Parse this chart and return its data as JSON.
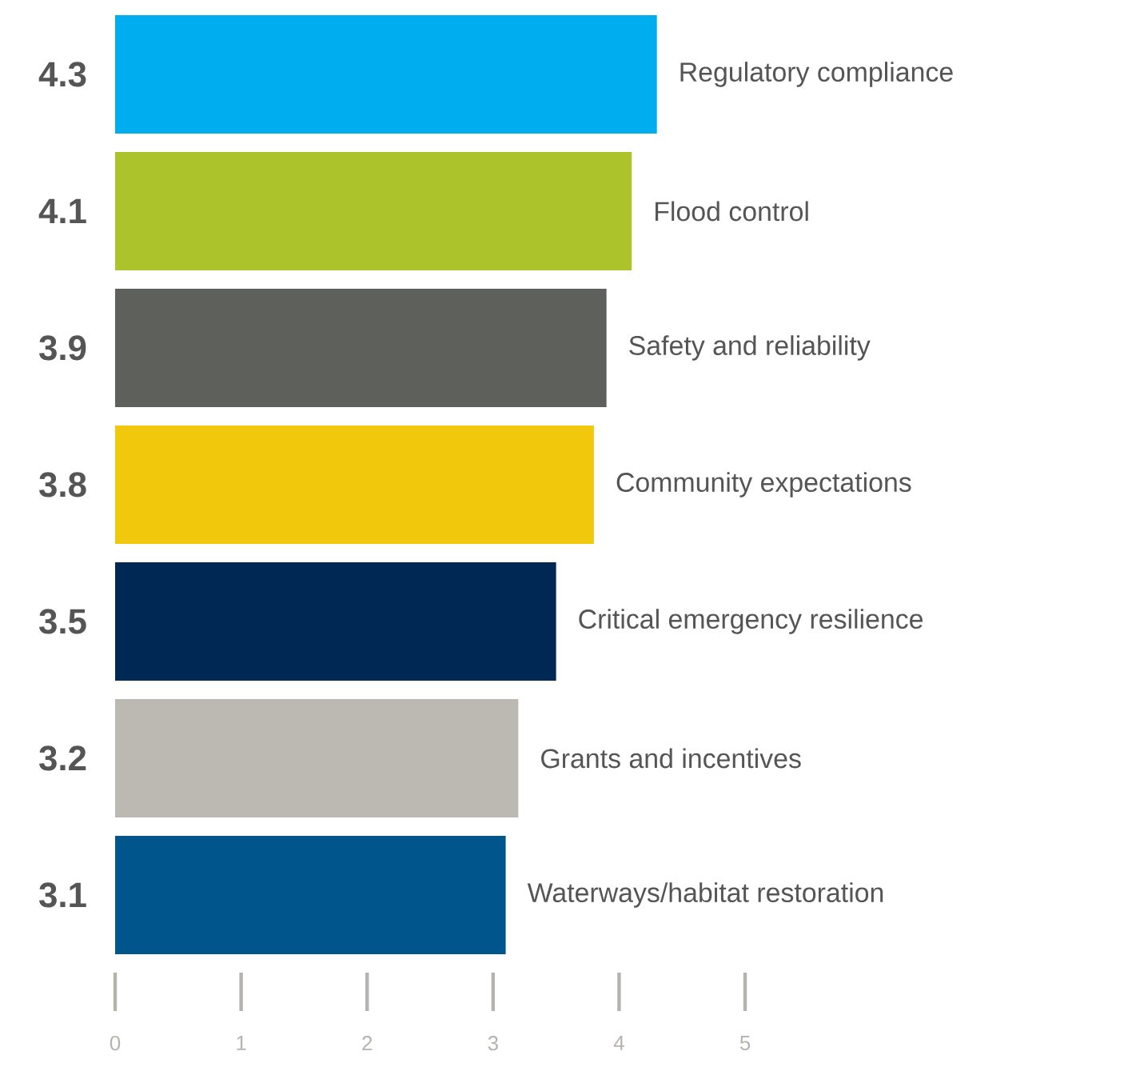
{
  "chart_data": {
    "type": "bar",
    "orientation": "horizontal",
    "categories": [
      "Regulatory compliance",
      "Flood control",
      "Safety and reliability",
      "Community expectations",
      "Critical emergency resilience",
      "Grants and incentives",
      "Waterways/habitat restoration"
    ],
    "values": [
      4.3,
      4.1,
      3.9,
      3.8,
      3.5,
      3.2,
      3.1
    ],
    "colors": [
      "#00aeef",
      "#acc32c",
      "#5e605c",
      "#f2c80c",
      "#002855",
      "#bcb9b2",
      "#00558c"
    ],
    "data_labels": true,
    "xlim": [
      0,
      5
    ],
    "xticks": [
      0,
      1,
      2,
      3,
      4,
      5
    ]
  }
}
